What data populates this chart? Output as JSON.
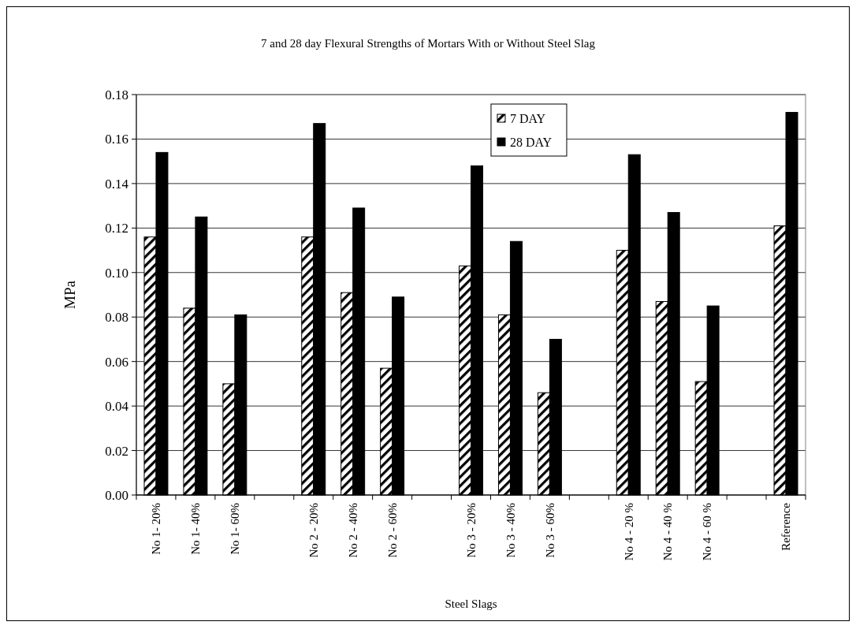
{
  "chart_data": {
    "type": "bar",
    "title": "7 and 28 day Flexural Strengths of Mortars With or Without Steel Slag",
    "xlabel": "Steel Slags",
    "ylabel": "MPa",
    "categories": [
      "No 1- 20%",
      "No 1- 40%",
      "No 1- 60%",
      null,
      "No 2 - 20%",
      "No 2 - 40%",
      "No 2 - 60%",
      null,
      "No 3 - 20%",
      "No 3 - 40%",
      "No 3 - 60%",
      null,
      "No 4 - 20 %",
      "No 4 - 40 %",
      "No 4 - 60 %",
      null,
      "Reference"
    ],
    "series": [
      {
        "name": "7 DAY",
        "color": "#000000",
        "values": [
          0.116,
          0.084,
          0.05,
          null,
          0.116,
          0.091,
          0.057,
          null,
          0.103,
          0.081,
          0.046,
          null,
          0.11,
          0.087,
          0.051,
          null,
          0.121
        ]
      },
      {
        "name": "28 DAY",
        "color": "#000000",
        "values": [
          0.154,
          0.125,
          0.081,
          null,
          0.167,
          0.129,
          0.089,
          null,
          0.148,
          0.114,
          0.07,
          null,
          0.153,
          0.127,
          0.085,
          null,
          0.172
        ]
      }
    ],
    "ylim": [
      0,
      0.18
    ],
    "yticks": [
      {
        "value": 0,
        "label": "0.00"
      },
      {
        "value": 0.02,
        "label": "0.02"
      },
      {
        "value": 0.04,
        "label": "0.04"
      },
      {
        "value": 0.06,
        "label": "0.06"
      },
      {
        "value": 0.08,
        "label": "0.08"
      },
      {
        "value": 0.1,
        "label": "0.10"
      },
      {
        "value": 0.12,
        "label": "0.12"
      },
      {
        "value": 0.14,
        "label": "0.14"
      },
      {
        "value": 0.16,
        "label": "0.16"
      },
      {
        "value": 0.18,
        "label": "0.18"
      }
    ],
    "grid": "y",
    "legend": "top"
  }
}
